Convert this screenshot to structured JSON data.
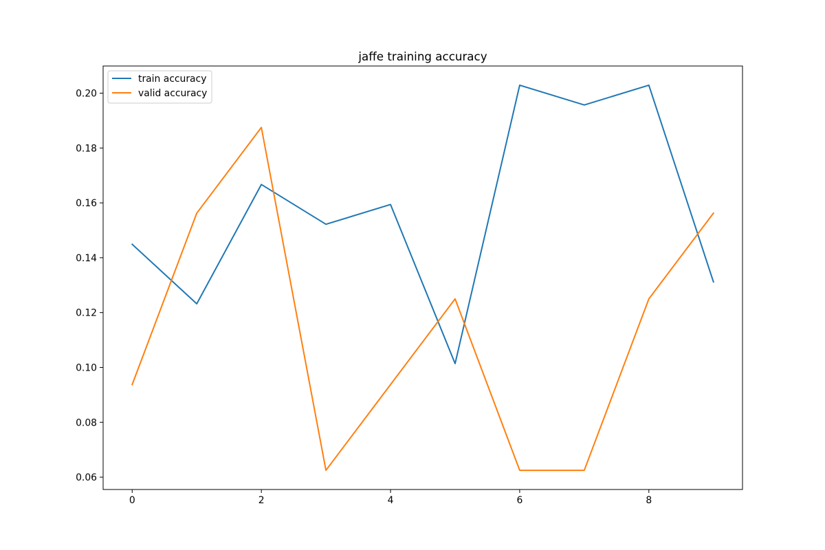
{
  "chart_data": {
    "type": "line",
    "title": "jaffe training accuracy",
    "xlabel": "",
    "ylabel": "",
    "x": [
      0,
      1,
      2,
      3,
      4,
      5,
      6,
      7,
      8,
      9
    ],
    "series": [
      {
        "name": "train accuracy",
        "color": "#1f77b4",
        "values": [
          0.1449,
          0.1232,
          0.1667,
          0.1522,
          0.1594,
          0.1014,
          0.2029,
          0.1957,
          0.2029,
          0.1312
        ]
      },
      {
        "name": "valid accuracy",
        "color": "#ff7f0e",
        "values": [
          0.09375,
          0.15625,
          0.1875,
          0.0625,
          0.09375,
          0.125,
          0.0625,
          0.0625,
          0.125,
          0.15625
        ]
      }
    ],
    "xlim": [
      -0.45,
      9.45
    ],
    "ylim": [
      0.0555,
      0.2099
    ],
    "xticks": [
      "0",
      "2",
      "4",
      "6",
      "8"
    ],
    "yticks": [
      "0.06",
      "0.08",
      "0.10",
      "0.12",
      "0.14",
      "0.16",
      "0.18",
      "0.20"
    ],
    "grid": false,
    "legend_position": "top-left"
  }
}
